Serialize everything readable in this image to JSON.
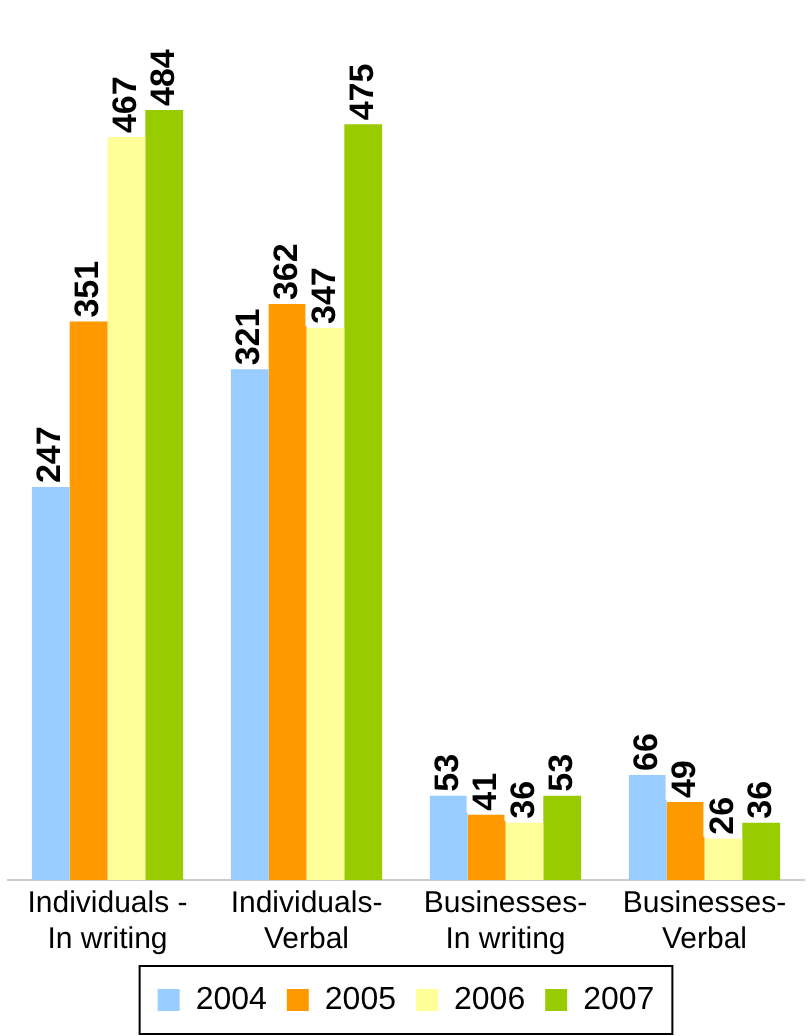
{
  "chart_data": {
    "type": "bar",
    "categories": [
      "Individuals -\nIn writing",
      "Individuals-\nVerbal",
      "Businesses-\nIn writing",
      "Businesses-\nVerbal"
    ],
    "series": [
      {
        "name": "2004",
        "color": "#99ccff",
        "values": [
          247,
          321,
          53,
          66
        ]
      },
      {
        "name": "2005",
        "color": "#ff9900",
        "values": [
          351,
          362,
          41,
          49
        ]
      },
      {
        "name": "2006",
        "color": "#ffff99",
        "values": [
          467,
          347,
          36,
          26
        ]
      },
      {
        "name": "2007",
        "color": "#99cc00",
        "values": [
          484,
          475,
          53,
          36
        ]
      }
    ],
    "data_labels": true,
    "legend": "bottom",
    "grid": false
  }
}
